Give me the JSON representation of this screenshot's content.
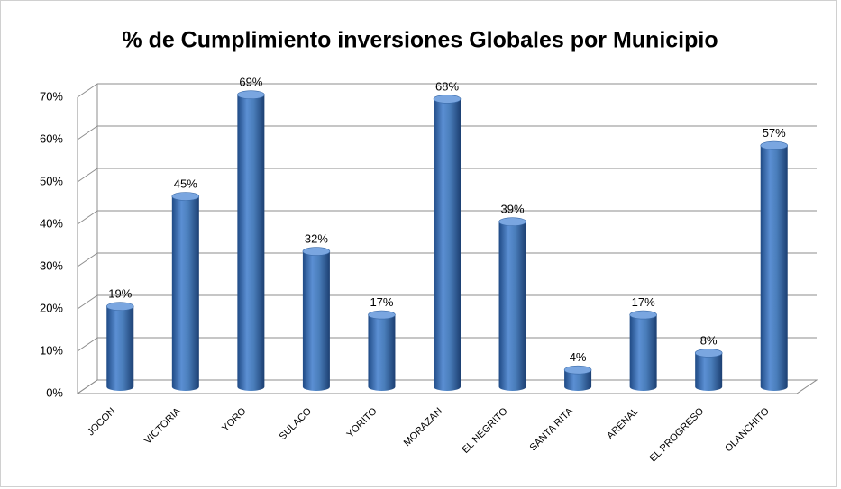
{
  "chart_data": {
    "type": "bar3d",
    "title": "% de Cumplimiento inversiones Globales por Municipio",
    "categories": [
      "JOCON",
      "VICTORIA",
      "YORO",
      "SULACO",
      "YORITO",
      "MORAZAN",
      "EL NEGRITO",
      "SANTA RITA",
      "ARENAL",
      "EL PROGRESO",
      "OLANCHITO"
    ],
    "values": [
      19,
      45,
      69,
      32,
      17,
      68,
      39,
      4,
      17,
      8,
      57
    ],
    "value_labels": [
      "19%",
      "45%",
      "69%",
      "32%",
      "17%",
      "68%",
      "39%",
      "4%",
      "17%",
      "8%",
      "57%"
    ],
    "color": "#4a7ebb",
    "ylim": [
      0,
      70
    ],
    "yticks": [
      {
        "value": 0,
        "label": "0%"
      },
      {
        "value": 10,
        "label": "10%"
      },
      {
        "value": 20,
        "label": "20%"
      },
      {
        "value": 30,
        "label": "30%"
      },
      {
        "value": 40,
        "label": "40%"
      },
      {
        "value": 50,
        "label": "50%"
      },
      {
        "value": 60,
        "label": "60%"
      },
      {
        "value": 70,
        "label": "70%"
      }
    ],
    "grid": true
  }
}
